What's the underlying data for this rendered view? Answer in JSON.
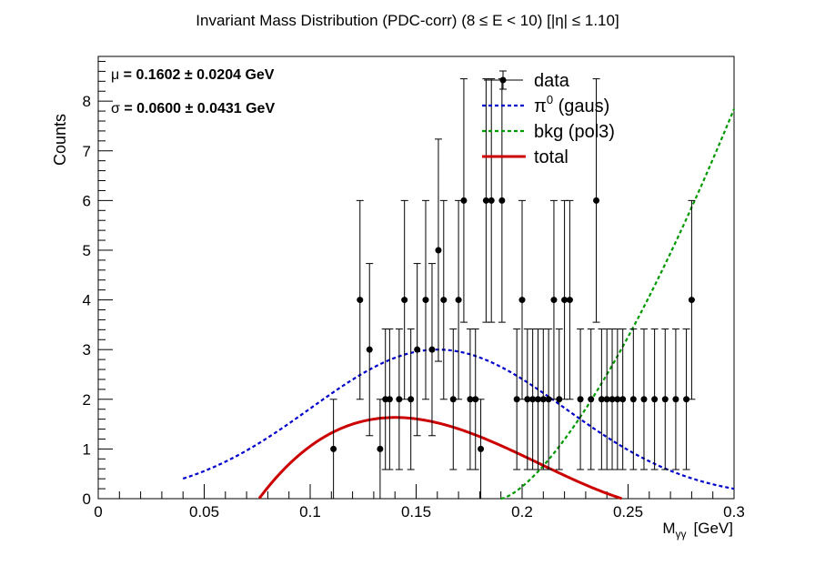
{
  "chart_data": {
    "type": "scatter",
    "title": "Invariant Mass Distribution (PDC-corr)   (8    ≤ E < 10)   [|η| ≤ 1.10]",
    "xlabel": "M",
    "xlabel_sub": "γγ",
    "xlabel_unit": "[GeV]",
    "ylabel": "Counts",
    "xlim": [
      0,
      0.3
    ],
    "ylim": [
      0,
      8.9
    ],
    "x_ticks": [
      0,
      0.05,
      0.1,
      0.15,
      0.2,
      0.25,
      0.3
    ],
    "x_tick_labels": [
      "0",
      "0.05",
      "0.1",
      "0.15",
      "0.2",
      "0.25",
      "0.3"
    ],
    "y_ticks": [
      0,
      1,
      2,
      3,
      4,
      5,
      6,
      7,
      8
    ],
    "y_tick_labels": [
      "0",
      "1",
      "2",
      "3",
      "4",
      "5",
      "6",
      "7",
      "8"
    ],
    "fit_params": [
      {
        "symbol": "μ",
        "text": " = 0.1602 ± 0.0204 GeV"
      },
      {
        "symbol": "σ",
        "text": " = 0.0600 ± 0.0431 GeV"
      }
    ],
    "legend": {
      "position": "top-right",
      "entries": [
        {
          "key": "data",
          "label": "data",
          "sup": ""
        },
        {
          "key": "gaus",
          "label": "π",
          "sup": "0",
          "suffix": " (gaus)"
        },
        {
          "key": "bkg",
          "label": "bkg (pol3)",
          "sup": ""
        },
        {
          "key": "total",
          "label": "total",
          "sup": ""
        }
      ]
    },
    "colors": {
      "data": "#000000",
      "gaus": "#0000cc",
      "bkg": "#009900",
      "total": "#cc0000"
    },
    "data_points": {
      "x": [
        0.111,
        0.1235,
        0.128,
        0.133,
        0.1355,
        0.1375,
        0.142,
        0.1445,
        0.1475,
        0.1505,
        0.1545,
        0.1575,
        0.1605,
        0.163,
        0.1675,
        0.17,
        0.1725,
        0.1755,
        0.178,
        0.1805,
        0.183,
        0.1855,
        0.1905,
        0.1975,
        0.2,
        0.2025,
        0.205,
        0.2075,
        0.21,
        0.2125,
        0.215,
        0.2175,
        0.22,
        0.2225,
        0.2275,
        0.2325,
        0.235,
        0.2375,
        0.24,
        0.2425,
        0.245,
        0.2475,
        0.2525,
        0.2575,
        0.2625,
        0.2675,
        0.2725,
        0.2775,
        0.28
      ],
      "y": [
        1,
        4,
        3,
        1,
        2,
        2,
        2,
        4,
        2,
        3,
        4,
        3,
        5,
        4,
        2,
        4,
        6,
        2,
        2,
        1,
        6,
        6,
        6,
        2,
        4,
        2,
        2,
        2,
        2,
        2,
        4,
        2,
        4,
        4,
        2,
        2,
        6,
        2,
        2,
        2,
        2,
        2,
        2,
        2,
        2,
        2,
        2,
        2,
        4
      ]
    },
    "curves": {
      "gaus": {
        "mu": 0.1602,
        "sigma": 0.06,
        "amp": 3.0,
        "x_range": [
          0.04,
          0.3
        ]
      },
      "bkg": {
        "coeffs_note": "pol3 background",
        "x_range": [
          0.19,
          0.3
        ]
      },
      "total": {
        "x_range": [
          0.075,
          0.3
        ]
      }
    }
  }
}
